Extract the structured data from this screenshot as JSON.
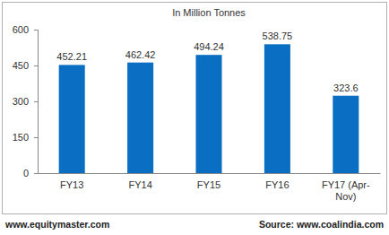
{
  "chart_data": {
    "type": "bar",
    "title": "In Million Tonnes",
    "categories": [
      "FY13",
      "FY14",
      "FY15",
      "FY16",
      "FY17 (Apr-Nov)"
    ],
    "values": [
      452.21,
      462.42,
      494.24,
      538.75,
      323.6
    ],
    "color": "#0a6fc2",
    "ylim": [
      0,
      600
    ],
    "yticks": [
      0,
      150,
      300,
      450,
      600
    ],
    "grid": false,
    "data_labels": true,
    "annotations": [
      "www.equitymaster.com",
      "Source: www.coalindia.com"
    ]
  }
}
